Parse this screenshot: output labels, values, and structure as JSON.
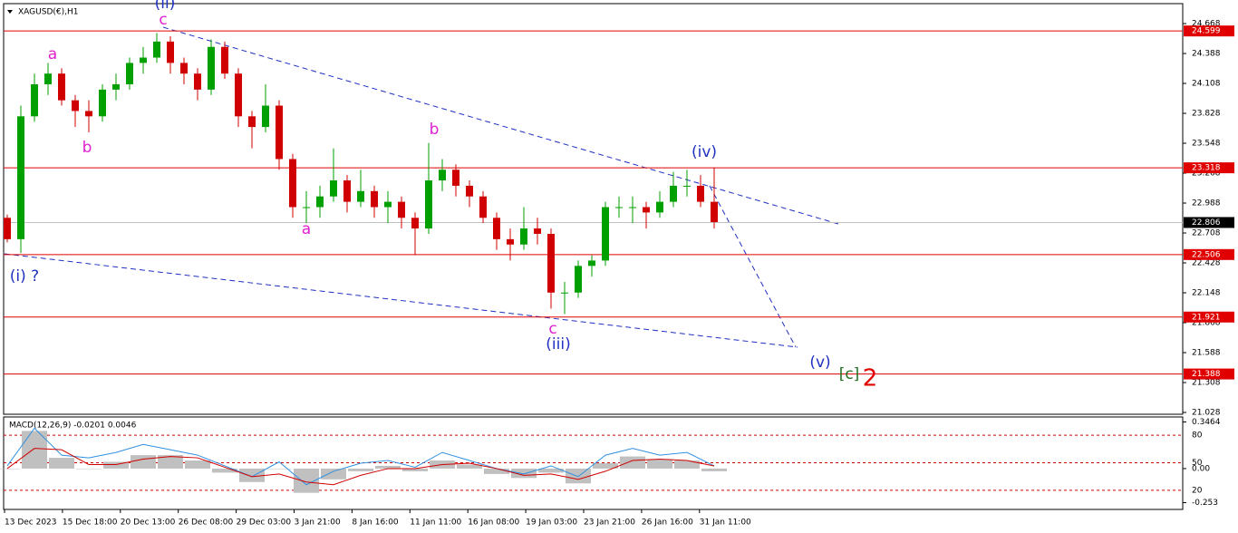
{
  "chart_data": {
    "type": "candlestick",
    "title": "XAGUSD(€),H1",
    "ylim": [
      21.011,
      24.855
    ],
    "yticks": [
      24.668,
      24.388,
      24.108,
      23.828,
      23.548,
      23.268,
      22.988,
      22.708,
      22.428,
      22.148,
      21.868,
      21.588,
      21.308,
      21.028
    ],
    "levels": [
      24.599,
      23.318,
      22.506,
      21.921,
      21.388
    ],
    "level_color": "#e00000",
    "current_price": 22.806,
    "up_color": "#00a000",
    "down_color": "#d00000",
    "candles": [
      [
        22.85,
        22.88,
        22.62,
        22.65
      ],
      [
        22.65,
        23.9,
        22.52,
        23.8
      ],
      [
        23.8,
        24.2,
        23.75,
        24.1
      ],
      [
        24.1,
        24.3,
        24.0,
        24.2
      ],
      [
        24.2,
        24.25,
        23.9,
        23.95
      ],
      [
        23.95,
        24.0,
        23.7,
        23.85
      ],
      [
        23.85,
        23.95,
        23.65,
        23.8
      ],
      [
        23.8,
        24.1,
        23.75,
        24.05
      ],
      [
        24.05,
        24.2,
        23.95,
        24.1
      ],
      [
        24.1,
        24.35,
        24.05,
        24.3
      ],
      [
        24.3,
        24.45,
        24.2,
        24.35
      ],
      [
        24.35,
        24.58,
        24.3,
        24.5
      ],
      [
        24.5,
        24.55,
        24.2,
        24.3
      ],
      [
        24.3,
        24.35,
        24.1,
        24.2
      ],
      [
        24.2,
        24.25,
        23.95,
        24.05
      ],
      [
        24.05,
        24.52,
        24.0,
        24.45
      ],
      [
        24.45,
        24.5,
        24.15,
        24.2
      ],
      [
        24.2,
        24.25,
        23.7,
        23.8
      ],
      [
        23.8,
        23.85,
        23.5,
        23.7
      ],
      [
        23.7,
        24.1,
        23.65,
        23.9
      ],
      [
        23.9,
        23.95,
        23.3,
        23.4
      ],
      [
        23.4,
        23.45,
        22.85,
        22.95
      ],
      [
        22.95,
        23.1,
        22.8,
        22.95
      ],
      [
        22.95,
        23.15,
        22.85,
        23.05
      ],
      [
        23.05,
        23.5,
        23.0,
        23.2
      ],
      [
        23.2,
        23.25,
        22.9,
        23.0
      ],
      [
        23.0,
        23.3,
        22.95,
        23.1
      ],
      [
        23.1,
        23.15,
        22.85,
        22.95
      ],
      [
        22.95,
        23.1,
        22.8,
        23.0
      ],
      [
        23.0,
        23.05,
        22.75,
        22.85
      ],
      [
        22.85,
        22.9,
        22.5,
        22.75
      ],
      [
        22.75,
        23.55,
        22.7,
        23.2
      ],
      [
        23.2,
        23.4,
        23.1,
        23.3
      ],
      [
        23.3,
        23.35,
        23.05,
        23.15
      ],
      [
        23.15,
        23.2,
        22.95,
        23.05
      ],
      [
        23.05,
        23.1,
        22.8,
        22.85
      ],
      [
        22.85,
        22.9,
        22.55,
        22.65
      ],
      [
        22.65,
        22.75,
        22.45,
        22.6
      ],
      [
        22.6,
        22.95,
        22.55,
        22.75
      ],
      [
        22.75,
        22.85,
        22.6,
        22.7
      ],
      [
        22.7,
        22.75,
        22.0,
        22.15
      ],
      [
        22.15,
        22.25,
        21.95,
        22.15
      ],
      [
        22.15,
        22.45,
        22.1,
        22.4
      ],
      [
        22.4,
        22.5,
        22.3,
        22.45
      ],
      [
        22.45,
        23.0,
        22.4,
        22.95
      ],
      [
        22.95,
        23.05,
        22.85,
        22.95
      ],
      [
        22.95,
        23.05,
        22.8,
        22.95
      ],
      [
        22.95,
        23.0,
        22.75,
        22.9
      ],
      [
        22.9,
        23.1,
        22.85,
        23.0
      ],
      [
        23.0,
        23.28,
        22.95,
        23.15
      ],
      [
        23.15,
        23.3,
        23.05,
        23.15
      ],
      [
        23.15,
        23.25,
        22.95,
        23.0
      ],
      [
        23.0,
        23.32,
        22.75,
        22.81
      ]
    ],
    "x_labels": [
      "13 Dec 2023",
      "15 Dec 18:00",
      "20 Dec 13:00",
      "26 Dec 08:00",
      "29 Dec 03:00",
      "3 Jan 21:00",
      "8 Jan 16:00",
      "11 Jan 11:00",
      "16 Jan 08:00",
      "19 Jan 03:00",
      "23 Jan 21:00",
      "26 Jan 16:00",
      "31 Jan 11:00"
    ],
    "annotations": [
      "(ii)",
      "c",
      "a",
      "b",
      "b",
      "a",
      "c",
      "(iii)",
      "(iv)",
      "(v)",
      "(i) ?",
      "[c]",
      "2"
    ],
    "macd": {
      "title": "MACD(12,26,9) -0.0201 0.0046",
      "ylim": [
        -0.29,
        0.37
      ],
      "yticks": [
        0.3464,
        {
          "value": 0,
          "label": "0.00"
        },
        -0.253
      ],
      "levels": [
        {
          "value": 0.248,
          "label": "80"
        },
        {
          "value": 0.043,
          "label": "50"
        },
        {
          "value": -0.161,
          "label": "20"
        }
      ],
      "histogram": [
        0.0,
        0.28,
        0.08,
        0.0,
        0.05,
        0.1,
        0.1,
        0.06,
        -0.03,
        -0.1,
        0.0,
        -0.18,
        -0.08,
        -0.02,
        0.02,
        -0.02,
        0.06,
        0.03,
        -0.04,
        -0.07,
        -0.03,
        -0.11,
        0.04,
        0.09,
        0.07,
        0.06,
        -0.02
      ],
      "signal": [
        0.0,
        0.15,
        0.14,
        0.03,
        0.03,
        0.07,
        0.09,
        0.08,
        0.01,
        -0.06,
        -0.04,
        -0.1,
        -0.12,
        -0.05,
        0.0,
        0.0,
        0.03,
        0.04,
        0.0,
        -0.05,
        -0.04,
        -0.08,
        -0.02,
        0.06,
        0.07,
        0.06,
        0.02
      ],
      "line": [
        0.02,
        0.3,
        0.1,
        0.08,
        0.12,
        0.18,
        0.14,
        0.1,
        0.02,
        -0.06,
        0.05,
        -0.12,
        -0.02,
        0.04,
        0.06,
        0.01,
        0.12,
        0.06,
        0.0,
        -0.04,
        0.02,
        -0.06,
        0.1,
        0.15,
        0.1,
        0.12,
        0.02
      ]
    }
  }
}
